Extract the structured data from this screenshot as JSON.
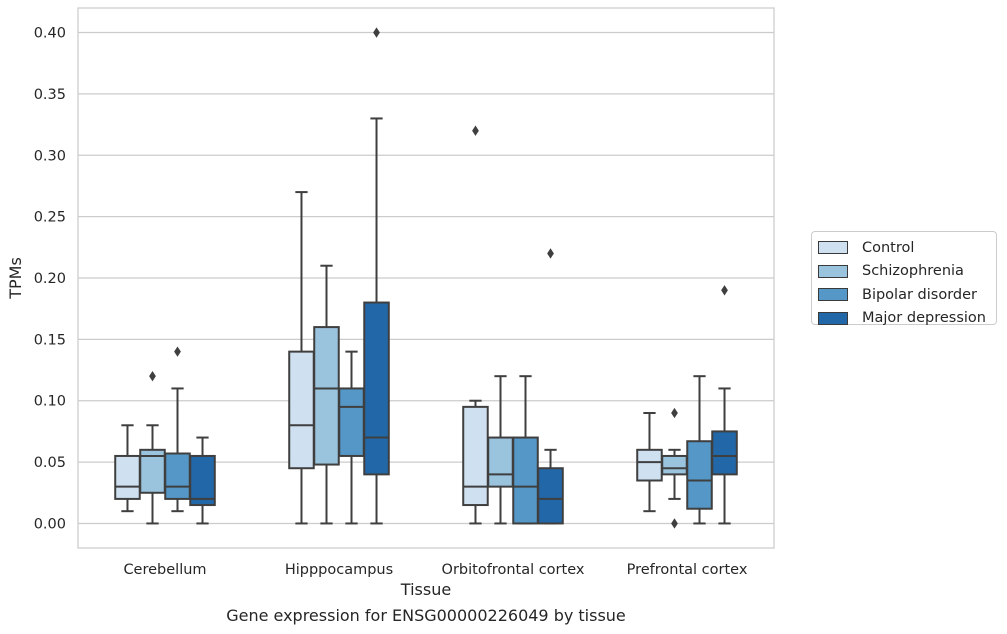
{
  "chart_data": {
    "type": "boxplot",
    "title": "",
    "caption": "Gene expression for ENSG00000226049 by tissue",
    "xlabel": "Tissue",
    "ylabel": "TPMs",
    "ylim": [
      -0.02,
      0.42
    ],
    "yticks": [
      "0.00",
      "0.05",
      "0.10",
      "0.15",
      "0.20",
      "0.25",
      "0.30",
      "0.35",
      "0.40"
    ],
    "grid": "horizontal",
    "legend_position": "right",
    "categories": [
      "Cerebellum",
      "Hipppocampus",
      "Orbitofrontal cortex",
      "Prefrontal cortex"
    ],
    "series": [
      {
        "name": "Control",
        "color": "#cfe0f1",
        "boxes": [
          {
            "whislo": 0.01,
            "q1": 0.02,
            "med": 0.03,
            "q3": 0.055,
            "whishi": 0.08,
            "fliers": []
          },
          {
            "whislo": 0.0,
            "q1": 0.045,
            "med": 0.08,
            "q3": 0.14,
            "whishi": 0.27,
            "fliers": []
          },
          {
            "whislo": 0.0,
            "q1": 0.015,
            "med": 0.03,
            "q3": 0.095,
            "whishi": 0.1,
            "fliers": [
              0.32
            ]
          },
          {
            "whislo": 0.01,
            "q1": 0.035,
            "med": 0.05,
            "q3": 0.06,
            "whishi": 0.09,
            "fliers": []
          }
        ]
      },
      {
        "name": "Schizophrenia",
        "color": "#9ac3de",
        "boxes": [
          {
            "whislo": 0.0,
            "q1": 0.025,
            "med": 0.055,
            "q3": 0.06,
            "whishi": 0.08,
            "fliers": [
              0.12
            ]
          },
          {
            "whislo": 0.0,
            "q1": 0.048,
            "med": 0.11,
            "q3": 0.16,
            "whishi": 0.21,
            "fliers": []
          },
          {
            "whislo": 0.0,
            "q1": 0.03,
            "med": 0.04,
            "q3": 0.07,
            "whishi": 0.12,
            "fliers": []
          },
          {
            "whislo": 0.02,
            "q1": 0.04,
            "med": 0.045,
            "q3": 0.055,
            "whishi": 0.06,
            "fliers": [
              0.09,
              0.0
            ]
          }
        ]
      },
      {
        "name": "Bipolar disorder",
        "color": "#5597c6",
        "boxes": [
          {
            "whislo": 0.01,
            "q1": 0.02,
            "med": 0.03,
            "q3": 0.057,
            "whishi": 0.11,
            "fliers": [
              0.14
            ]
          },
          {
            "whislo": 0.0,
            "q1": 0.055,
            "med": 0.095,
            "q3": 0.11,
            "whishi": 0.14,
            "fliers": []
          },
          {
            "whislo": 0.0,
            "q1": 0.0,
            "med": 0.03,
            "q3": 0.07,
            "whishi": 0.12,
            "fliers": []
          },
          {
            "whislo": 0.0,
            "q1": 0.012,
            "med": 0.035,
            "q3": 0.067,
            "whishi": 0.12,
            "fliers": []
          }
        ]
      },
      {
        "name": "Major depression",
        "color": "#2268a9",
        "boxes": [
          {
            "whislo": 0.0,
            "q1": 0.015,
            "med": 0.02,
            "q3": 0.055,
            "whishi": 0.07,
            "fliers": []
          },
          {
            "whislo": 0.0,
            "q1": 0.04,
            "med": 0.07,
            "q3": 0.18,
            "whishi": 0.33,
            "fliers": [
              0.4
            ]
          },
          {
            "whislo": 0.0,
            "q1": 0.0,
            "med": 0.02,
            "q3": 0.045,
            "whishi": 0.06,
            "fliers": [
              0.22
            ]
          },
          {
            "whislo": 0.0,
            "q1": 0.04,
            "med": 0.055,
            "q3": 0.075,
            "whishi": 0.11,
            "fliers": [
              0.19
            ]
          }
        ]
      }
    ]
  }
}
